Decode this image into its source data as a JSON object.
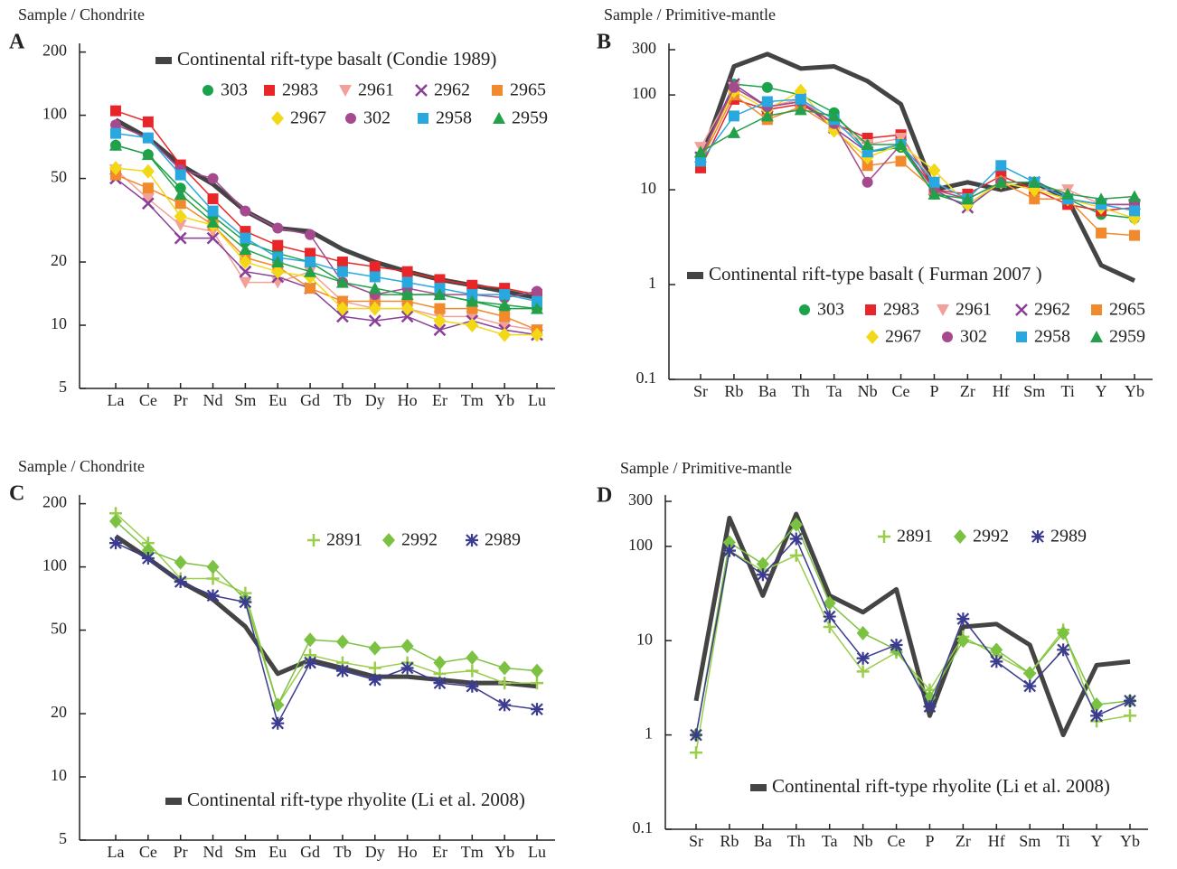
{
  "chart_data": [
    {
      "type": "line",
      "panel": "A",
      "y_label": "Sample / Chondrite",
      "log_scale": true,
      "categories": [
        "La",
        "Ce",
        "Pr",
        "Nd",
        "Sm",
        "Eu",
        "Gd",
        "Tb",
        "Dy",
        "Ho",
        "Er",
        "Tm",
        "Yb",
        "Lu"
      ],
      "ylim": [
        5,
        220
      ],
      "yticks": [
        5,
        10,
        20,
        50,
        100,
        200
      ],
      "series": [
        {
          "name": "Continental rift-type basalt (Condie 1989)",
          "color": "#444444",
          "values": [
            95,
            78,
            58,
            47,
            35,
            29,
            28,
            23,
            20,
            18,
            16.5,
            15.5,
            14.5,
            13.5
          ]
        },
        {
          "name": "303",
          "color": "#1aa34a",
          "marker": "circle",
          "values": [
            72,
            65,
            45,
            33,
            25,
            22,
            20,
            16,
            14,
            14,
            14,
            13,
            12,
            12
          ]
        },
        {
          "name": "2983",
          "color": "#e8262a",
          "marker": "square",
          "values": [
            105,
            93,
            58,
            40,
            28,
            24,
            22,
            20,
            19,
            18,
            16.5,
            15.5,
            15,
            14
          ]
        },
        {
          "name": "2961",
          "color": "#f4a09a",
          "marker": "triangle-down",
          "values": [
            55,
            40,
            30,
            28,
            16,
            16,
            18,
            13,
            12,
            12,
            11,
            11,
            10,
            9.5
          ]
        },
        {
          "name": "2962",
          "color": "#8a3f96",
          "marker": "x",
          "values": [
            50,
            38,
            26,
            26,
            18,
            17,
            15,
            11,
            10.5,
            11,
            9.5,
            10.5,
            9.5,
            9
          ]
        },
        {
          "name": "2965",
          "color": "#f08a2c",
          "marker": "square",
          "values": [
            52,
            45,
            38,
            30,
            21,
            19,
            15,
            13,
            13,
            13,
            12,
            12,
            11,
            9.5
          ]
        },
        {
          "name": "2967",
          "color": "#f2d816",
          "marker": "diamond",
          "values": [
            56,
            54,
            33,
            30,
            20,
            18,
            17,
            12,
            12,
            12,
            10.5,
            10,
            9,
            9
          ]
        },
        {
          "name": "302",
          "color": "#a64a8f",
          "marker": "circle",
          "values": [
            90,
            78,
            55,
            50,
            35,
            29,
            27,
            16,
            14,
            15,
            14,
            14,
            13.5,
            14.5
          ]
        },
        {
          "name": "2958",
          "color": "#29a8e0",
          "marker": "square",
          "values": [
            82,
            78,
            52,
            35,
            26,
            21,
            20,
            18,
            17,
            16,
            15,
            14,
            14,
            13
          ]
        },
        {
          "name": "2959",
          "color": "#22a04a",
          "marker": "triangle",
          "values": [
            72,
            65,
            42,
            31,
            23,
            20,
            18,
            16,
            15,
            14,
            14,
            13,
            12.5,
            12
          ]
        }
      ]
    },
    {
      "type": "line",
      "panel": "B",
      "y_label": "Sample / Primitive-mantle",
      "log_scale": true,
      "categories": [
        "Sr",
        "Rb",
        "Ba",
        "Th",
        "Ta",
        "Nb",
        "Ce",
        "P",
        "Zr",
        "Hf",
        "Sm",
        "Ti",
        "Y",
        "Yb"
      ],
      "ylim": [
        0.1,
        350
      ],
      "yticks": [
        0.1,
        1,
        10,
        100,
        300
      ],
      "series": [
        {
          "name": "Continental rift-type basalt ( Furman 2007 )",
          "color": "#444444",
          "values": [
            20,
            200,
            270,
            190,
            200,
            140,
            80,
            10,
            12,
            10,
            12,
            8,
            1.6,
            1.1
          ]
        },
        {
          "name": "303",
          "color": "#1aa34a",
          "marker": "circle",
          "values": [
            22,
            130,
            120,
            100,
            65,
            25,
            28,
            9,
            7,
            12,
            12,
            8,
            5.5,
            5
          ]
        },
        {
          "name": "2983",
          "color": "#e8262a",
          "marker": "square",
          "values": [
            17,
            90,
            70,
            80,
            50,
            35,
            38,
            10,
            9,
            14,
            10,
            7,
            6,
            6.5
          ]
        },
        {
          "name": "2961",
          "color": "#f4a09a",
          "marker": "triangle-down",
          "values": [
            28,
            120,
            75,
            90,
            50,
            30,
            35,
            12,
            8,
            12,
            10,
            10,
            7,
            7
          ]
        },
        {
          "name": "2962",
          "color": "#8a3f96",
          "marker": "x",
          "values": [
            22,
            130,
            75,
            85,
            45,
            25,
            30,
            10,
            6.5,
            12,
            12,
            8,
            7,
            7
          ]
        },
        {
          "name": "2965",
          "color": "#f08a2c",
          "marker": "square",
          "values": [
            20,
            100,
            55,
            75,
            45,
            18,
            20,
            10,
            8,
            12,
            8,
            8,
            3.5,
            3.3
          ]
        },
        {
          "name": "2967",
          "color": "#f2d816",
          "marker": "diamond",
          "values": [
            22,
            110,
            70,
            110,
            42,
            22,
            30,
            16,
            7,
            12,
            10,
            8,
            6.5,
            5
          ]
        },
        {
          "name": "302",
          "color": "#a64a8f",
          "marker": "circle",
          "values": [
            22,
            120,
            75,
            85,
            50,
            12,
            30,
            10,
            8,
            12,
            12,
            8,
            7,
            7
          ]
        },
        {
          "name": "2958",
          "color": "#29a8e0",
          "marker": "square",
          "values": [
            20,
            60,
            85,
            90,
            55,
            25,
            30,
            12,
            8,
            18,
            12,
            8,
            7,
            6
          ]
        },
        {
          "name": "2959",
          "color": "#22a04a",
          "marker": "triangle",
          "values": [
            25,
            40,
            60,
            70,
            60,
            30,
            30,
            9,
            8,
            12,
            12,
            9,
            8,
            8.5
          ]
        }
      ]
    },
    {
      "type": "line",
      "panel": "C",
      "y_label": "Sample / Chondrite",
      "log_scale": true,
      "categories": [
        "La",
        "Ce",
        "Pr",
        "Nd",
        "Sm",
        "Eu",
        "Gd",
        "Tb",
        "Dy",
        "Ho",
        "Er",
        "Tm",
        "Yb",
        "Lu"
      ],
      "ylim": [
        5,
        220
      ],
      "yticks": [
        5,
        10,
        20,
        50,
        100,
        200
      ],
      "series": [
        {
          "name": "Continental rift-type rhyolite (Li et al. 2008)",
          "color": "#444444",
          "values": [
            140,
            110,
            85,
            70,
            52,
            31,
            36,
            33,
            30,
            30,
            29,
            28,
            28,
            27
          ]
        },
        {
          "name": "2891",
          "color": "#9acd4a",
          "marker": "plus",
          "values": [
            180,
            130,
            88,
            88,
            75,
            22,
            38,
            35,
            33,
            35,
            31,
            32,
            28,
            28
          ]
        },
        {
          "name": "2992",
          "color": "#7cc242",
          "marker": "diamond",
          "values": [
            165,
            120,
            105,
            100,
            70,
            22,
            45,
            44,
            41,
            42,
            35,
            37,
            33,
            32
          ]
        },
        {
          "name": "2989",
          "color": "#3b3b8f",
          "marker": "asterisk",
          "values": [
            130,
            110,
            85,
            73,
            68,
            18,
            35,
            32,
            29,
            33,
            28,
            27,
            22,
            21
          ]
        }
      ]
    },
    {
      "type": "line",
      "panel": "D",
      "y_label": "Sample / Primitive-mantle",
      "log_scale": true,
      "categories": [
        "Sr",
        "Rb",
        "Ba",
        "Th",
        "Ta",
        "Nb",
        "Ce",
        "P",
        "Zr",
        "Hf",
        "Sm",
        "Ti",
        "Y",
        "Yb"
      ],
      "ylim": [
        0.1,
        350
      ],
      "yticks": [
        0.1,
        1,
        10,
        100,
        300
      ],
      "series": [
        {
          "name": "Continental rift-type rhyolite (Li et al. 2008)",
          "color": "#444444",
          "values": [
            2.3,
            200,
            30,
            220,
            30,
            20,
            35,
            1.6,
            14,
            15,
            9,
            1,
            5.5,
            6
          ]
        },
        {
          "name": "2891",
          "color": "#9acd4a",
          "marker": "plus",
          "values": [
            0.65,
            90,
            55,
            80,
            14,
            4.7,
            7.5,
            3,
            11,
            7,
            4.5,
            13,
            1.4,
            1.6
          ]
        },
        {
          "name": "2992",
          "color": "#7cc242",
          "marker": "diamond",
          "values": [
            1,
            110,
            65,
            170,
            25,
            12,
            8,
            2.5,
            10,
            8,
            4.5,
            12,
            2.1,
            2.3
          ]
        },
        {
          "name": "2989",
          "color": "#3b3b8f",
          "marker": "asterisk",
          "values": [
            1,
            90,
            50,
            120,
            18,
            6.5,
            9,
            2,
            17,
            6,
            3.3,
            8,
            1.6,
            2.3
          ]
        }
      ]
    }
  ]
}
